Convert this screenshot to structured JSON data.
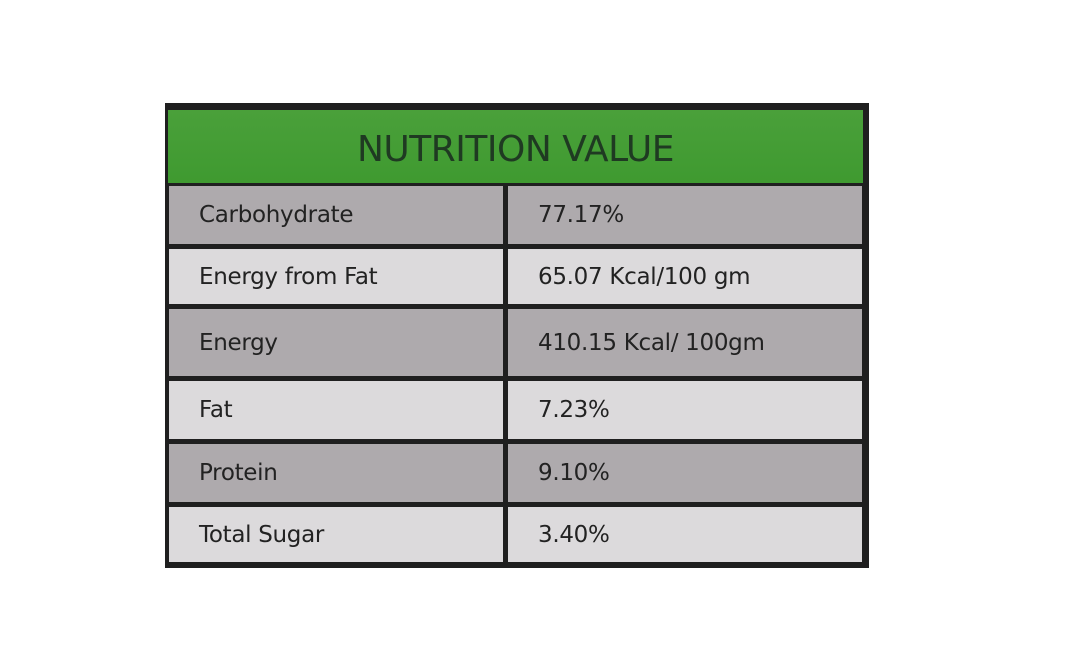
{
  "header": {
    "title": "NUTRITION VALUE"
  },
  "rows": [
    {
      "nutrient": "Carbohydrate",
      "value": "77.17%"
    },
    {
      "nutrient": "Energy from Fat",
      "value": "65.07 Kcal/100 gm"
    },
    {
      "nutrient": "Energy",
      "value": "410.15 Kcal/ 100gm"
    },
    {
      "nutrient": "Fat",
      "value": "7.23%"
    },
    {
      "nutrient": "Protein",
      "value": "9.10%"
    },
    {
      "nutrient": "Total Sugar",
      "value": "3.40%"
    }
  ],
  "colors": {
    "header_green": "#45a035",
    "header_text": "#1f3a22",
    "row_dark": "#aeaaad",
    "row_light": "#dcdadc",
    "border": "#1f1f1f"
  }
}
